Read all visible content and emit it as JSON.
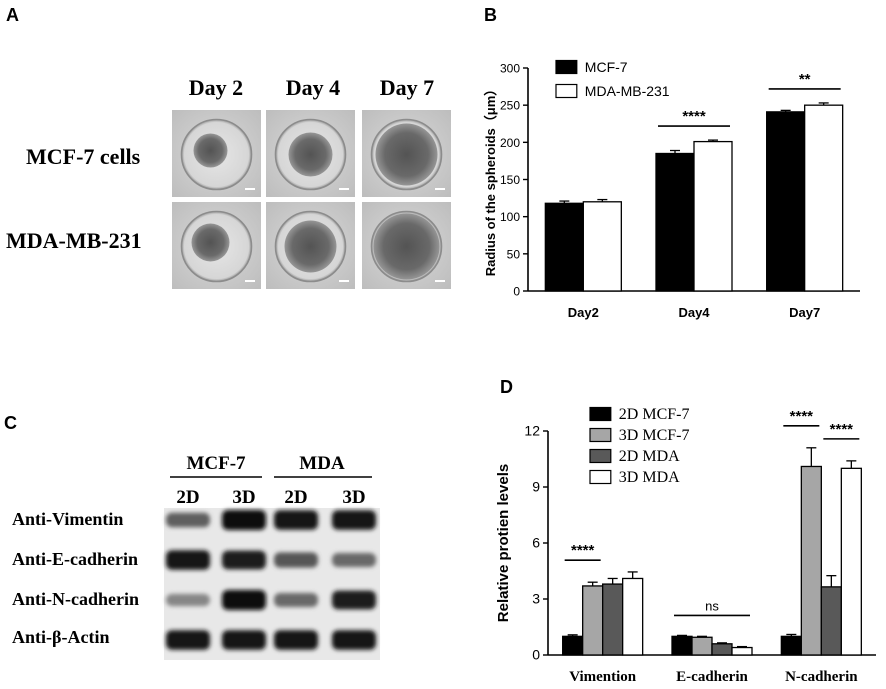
{
  "panel_letters": {
    "a": "A",
    "b": "B",
    "c": "C",
    "d": "D"
  },
  "panel_a": {
    "columns": [
      "Day 2",
      "Day 4",
      "Day 7"
    ],
    "rows": [
      "MCF-7 cells",
      "MDA-MB-231"
    ]
  },
  "panel_c": {
    "groups": [
      "MCF-7",
      "MDA"
    ],
    "conditions": [
      "2D",
      "3D",
      "2D",
      "3D"
    ],
    "bands": [
      {
        "label": "Anti-Vimentin",
        "intensities": [
          0.55,
          1.0,
          0.95,
          0.95
        ]
      },
      {
        "label": "Anti-E-cadherin",
        "intensities": [
          0.95,
          0.9,
          0.6,
          0.5
        ]
      },
      {
        "label": "Anti-N-cadherin",
        "intensities": [
          0.35,
          1.0,
          0.5,
          0.9
        ]
      },
      {
        "label": "Anti-β-Actin",
        "intensities": [
          0.95,
          0.95,
          0.95,
          0.95
        ]
      }
    ]
  },
  "chart_data": [
    {
      "panel": "B",
      "type": "bar",
      "categories": [
        "Day2",
        "Day4",
        "Day7"
      ],
      "series": [
        {
          "name": "MCF-7",
          "values": [
            118,
            185,
            241
          ],
          "errors": [
            3,
            4,
            2
          ],
          "color": "#000000"
        },
        {
          "name": "MDA-MB-231",
          "values": [
            120,
            201,
            250
          ],
          "errors": [
            3,
            2,
            3
          ],
          "color": "#ffffff"
        }
      ],
      "xlabel": "",
      "ylabel": "Radius of the spheroids（μm）",
      "ylim": [
        0,
        300
      ],
      "yticks": [
        0,
        50,
        100,
        150,
        200,
        250,
        300
      ],
      "legend": "top-left",
      "significance": [
        {
          "category": "Day4",
          "label": "****"
        },
        {
          "category": "Day7",
          "label": "**"
        }
      ]
    },
    {
      "panel": "D",
      "type": "bar",
      "categories": [
        "Vimention",
        "E-cadherin",
        "N-cadherin"
      ],
      "series": [
        {
          "name": "2D MCF-7",
          "values": [
            1.0,
            1.0,
            1.0
          ],
          "errors": [
            0.08,
            0.05,
            0.1
          ],
          "color": "#000000"
        },
        {
          "name": "3D MCF-7",
          "values": [
            3.7,
            0.95,
            10.1
          ],
          "errors": [
            0.2,
            0.05,
            1.0
          ],
          "color": "#a6a6a6"
        },
        {
          "name": "2D MDA",
          "values": [
            3.8,
            0.6,
            3.65
          ],
          "errors": [
            0.3,
            0.05,
            0.6
          ],
          "color": "#595959"
        },
        {
          "name": "3D MDA",
          "values": [
            4.1,
            0.4,
            10.0
          ],
          "errors": [
            0.35,
            0.05,
            0.4
          ],
          "color": "#ffffff"
        }
      ],
      "xlabel": "",
      "ylabel": "Relative protien levels",
      "ylim": [
        0,
        12
      ],
      "yticks": [
        0,
        3,
        6,
        9,
        12
      ],
      "legend": "top-left",
      "significance": [
        {
          "category": "Vimention",
          "label": "****",
          "span": "s0-s1"
        },
        {
          "category": "E-cadherin",
          "label": "ns",
          "span": "all"
        },
        {
          "category": "N-cadherin",
          "label": "****",
          "span": "s0-s1"
        },
        {
          "category": "N-cadherin",
          "label": "****",
          "span": "s2-s3"
        }
      ]
    }
  ]
}
